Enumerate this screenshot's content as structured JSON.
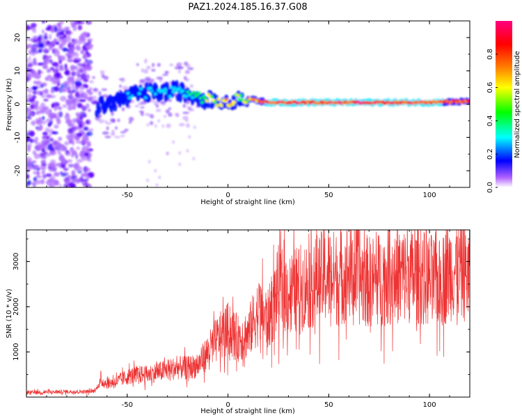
{
  "figure": {
    "title": "PAZ1.2024.185.16.37.G08"
  },
  "chart_data": [
    {
      "type": "heatmap",
      "xlabel": "Height of straight line (km)",
      "ylabel": "Frequency (Hz)",
      "xlim": [
        -100,
        120
      ],
      "ylim": [
        -25,
        25
      ],
      "xticks": [
        -50,
        0,
        50,
        100
      ],
      "yticks": [
        -20,
        -10,
        0,
        10,
        20
      ],
      "colorbar": {
        "label": "Normalized spectral amplitude",
        "range": [
          0,
          1
        ],
        "ticks": [
          "0.0",
          "0.2",
          "0.4",
          "0.6",
          "0.8"
        ],
        "colormap": [
          "#ffffff",
          "#a000ff",
          "#0000ff",
          "#00ffff",
          "#00ff00",
          "#ffff00",
          "#ff8000",
          "#ff0000",
          "#ff0080"
        ]
      },
      "ridge": {
        "description_points": [
          {
            "x": -60,
            "f": 0,
            "amp": 0.3
          },
          {
            "x": -45,
            "f": 3,
            "amp": 0.35
          },
          {
            "x": -25,
            "f": 4,
            "amp": 0.4
          },
          {
            "x": -10,
            "f": 1.5,
            "amp": 0.6
          },
          {
            "x": 0,
            "f": 0,
            "amp": 0.8
          },
          {
            "x": 6,
            "f": 2,
            "amp": 0.6
          },
          {
            "x": 20,
            "f": 0.5,
            "amp": 0.95
          },
          {
            "x": 60,
            "f": 0.5,
            "amp": 0.95
          },
          {
            "x": 100,
            "f": 0.5,
            "amp": 0.95
          },
          {
            "x": 120,
            "f": 0.8,
            "amp": 0.85
          }
        ]
      }
    },
    {
      "type": "line",
      "xlabel": "Height of straight line (km)",
      "ylabel": "SNR (10 * v/v)",
      "xlim": [
        -100,
        120
      ],
      "ylim": [
        0,
        3700
      ],
      "xticks": [
        -50,
        0,
        50,
        100
      ],
      "yticks": [
        1000,
        2000,
        3000
      ],
      "series": [
        {
          "color": "#ee3333",
          "x": [
            -100,
            -90,
            -80,
            -70,
            -66,
            -63,
            -60,
            -55,
            -50,
            -45,
            -40,
            -35,
            -30,
            -25,
            -20,
            -15,
            -10,
            -5,
            0,
            5,
            10,
            15,
            20,
            25,
            30,
            35,
            40,
            45,
            50,
            55,
            60,
            65,
            70,
            75,
            80,
            85,
            90,
            95,
            100,
            105,
            110,
            115,
            120
          ],
          "y": [
            100,
            110,
            120,
            120,
            140,
            350,
            300,
            350,
            450,
            500,
            500,
            550,
            600,
            650,
            650,
            700,
            1000,
            1300,
            1500,
            1300,
            1400,
            1900,
            1700,
            2400,
            2300,
            2400,
            2500,
            2600,
            2700,
            2600,
            2800,
            2650,
            2550,
            2600,
            2650,
            2700,
            2700,
            2650,
            2600,
            2500,
            2800,
            2850,
            2700
          ]
        }
      ]
    }
  ]
}
